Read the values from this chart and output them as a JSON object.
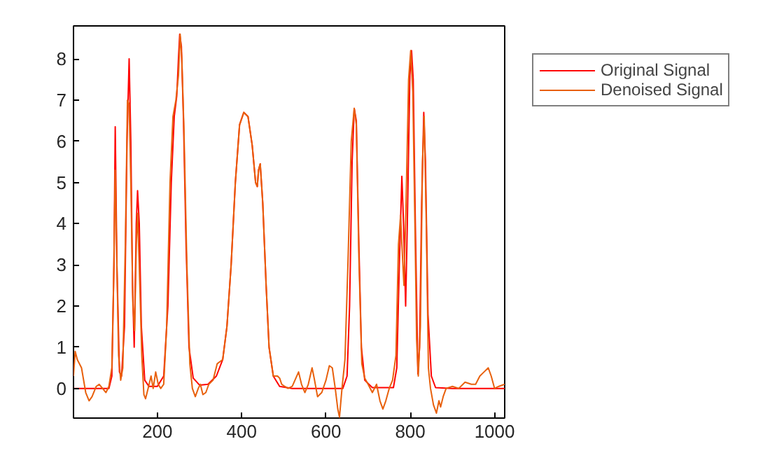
{
  "chart_data": {
    "type": "line",
    "xlim": [
      1,
      1024
    ],
    "ylim": [
      -0.72,
      8.8
    ],
    "xticks": [
      200,
      400,
      600,
      800,
      1000
    ],
    "yticks": [
      0,
      1,
      2,
      3,
      4,
      5,
      6,
      7,
      8
    ],
    "grid": false,
    "legend": "top right",
    "marker": "none",
    "line_style": "solid",
    "series": [
      {
        "name": "Original Signal",
        "color": "#ff0000",
        "x": [
          1,
          85,
          92,
          97,
          100,
          104,
          110,
          115,
          122,
          128,
          133,
          137,
          141,
          145,
          150,
          153,
          157,
          162,
          170,
          180,
          200,
          215,
          225,
          233,
          240,
          246,
          250,
          253,
          257,
          262,
          268,
          275,
          285,
          300,
          320,
          340,
          355,
          365,
          375,
          385,
          395,
          405,
          415,
          425,
          433,
          437,
          440,
          444,
          450,
          458,
          465,
          475,
          490,
          520,
          640,
          650,
          656,
          662,
          667,
          672,
          678,
          684,
          692,
          710,
          760,
          768,
          774,
          780,
          784,
          789,
          793,
          799,
          803,
          807,
          812,
          818,
          822,
          827,
          832,
          836,
          842,
          850,
          860,
          900,
          1024
        ],
        "values": [
          0,
          0,
          0.3,
          3,
          6.35,
          3,
          0.4,
          0.3,
          1.5,
          6,
          8.0,
          6,
          2.5,
          1.0,
          4,
          4.8,
          4,
          1.5,
          0.2,
          0.05,
          0.05,
          0.3,
          2,
          5,
          6.6,
          7.1,
          8.0,
          8.6,
          8.3,
          6.5,
          3.5,
          1.0,
          0.25,
          0.08,
          0.1,
          0.3,
          0.7,
          1.5,
          3,
          5,
          6.4,
          6.7,
          6.6,
          5.9,
          5.0,
          4.9,
          5.3,
          5.45,
          4.5,
          2.5,
          1.0,
          0.3,
          0.05,
          0,
          0,
          0.3,
          2,
          5.5,
          6.8,
          6.5,
          3.5,
          1.0,
          0.2,
          0.02,
          0.02,
          0.5,
          3,
          5.15,
          4.0,
          2.0,
          4,
          7.6,
          8.2,
          7.5,
          4,
          0.35,
          1,
          4.5,
          6.7,
          5.5,
          1.8,
          0.3,
          0.02,
          0,
          0
        ]
      },
      {
        "name": "Denoised Signal",
        "color": "#e8600c",
        "x": [
          1,
          5,
          10,
          20,
          30,
          38,
          45,
          55,
          62,
          70,
          78,
          85,
          92,
          96,
          100,
          103,
          108,
          113,
          118,
          124,
          129,
          133,
          137,
          142,
          146,
          150,
          153,
          157,
          163,
          168,
          172,
          178,
          185,
          190,
          196,
          202,
          208,
          215,
          222,
          230,
          237,
          244,
          250,
          254,
          258,
          263,
          270,
          277,
          283,
          290,
          297,
          302,
          308,
          315,
          322,
          332,
          342,
          355,
          365,
          375,
          385,
          395,
          405,
          415,
          425,
          433,
          437,
          440,
          444,
          450,
          458,
          465,
          475,
          485,
          490,
          495,
          502,
          510,
          520,
          535,
          542,
          550,
          558,
          567,
          572,
          580,
          590,
          600,
          608,
          615,
          622,
          628,
          632,
          638,
          645,
          652,
          660,
          667,
          672,
          678,
          685,
          692,
          700,
          710,
          720,
          728,
          735,
          742,
          750,
          758,
          766,
          772,
          777,
          780,
          785,
          790,
          796,
          801,
          806,
          811,
          815,
          819,
          824,
          829,
          833,
          838,
          843,
          848,
          855,
          862,
          868,
          872,
          878,
          885,
          900,
          915,
          930,
          945,
          955,
          965,
          975,
          985,
          992,
          1000,
          1010,
          1024
        ],
        "values": [
          0.3,
          0.9,
          0.7,
          0.5,
          -0.1,
          -0.3,
          -0.2,
          0.05,
          0.1,
          0.0,
          -0.1,
          0.05,
          0.5,
          2.5,
          5.3,
          3.5,
          0.8,
          0.2,
          0.5,
          3.5,
          7,
          6.9,
          5,
          2.0,
          1.4,
          3.5,
          4.25,
          3,
          0.8,
          -0.15,
          -0.25,
          0.0,
          0.3,
          0.0,
          0.4,
          0.1,
          0.0,
          0.1,
          1.5,
          5,
          6.6,
          7.0,
          7.6,
          8.6,
          8.0,
          6.3,
          3,
          0.6,
          0.0,
          -0.2,
          0.0,
          0.1,
          -0.15,
          -0.1,
          0.1,
          0.2,
          0.6,
          0.7,
          1.5,
          3,
          5,
          6.4,
          6.7,
          6.6,
          5.9,
          5.0,
          4.9,
          5.3,
          5.45,
          4.5,
          2.5,
          1.0,
          0.3,
          0.3,
          0.25,
          0.1,
          0.05,
          0.0,
          0.05,
          0.4,
          0.1,
          -0.1,
          0.1,
          0.5,
          0.25,
          -0.2,
          -0.1,
          0.2,
          0.55,
          0.5,
          0.0,
          -0.5,
          -0.7,
          0.0,
          0.7,
          3,
          6,
          6.8,
          6.4,
          3.2,
          0.6,
          0.25,
          0.1,
          -0.1,
          0.1,
          -0.3,
          -0.5,
          -0.3,
          0.0,
          0.2,
          0.8,
          3.5,
          4.2,
          3.5,
          2.5,
          4.5,
          7.5,
          8.2,
          7.2,
          4,
          1.2,
          0.3,
          1.5,
          5.5,
          6.6,
          4,
          0.5,
          0.0,
          -0.4,
          -0.6,
          -0.3,
          -0.45,
          -0.2,
          0.0,
          0.05,
          0.0,
          0.15,
          0.1,
          0.1,
          0.3,
          0.4,
          0.5,
          0.3,
          0.0,
          0.05,
          0.1
        ]
      }
    ]
  }
}
